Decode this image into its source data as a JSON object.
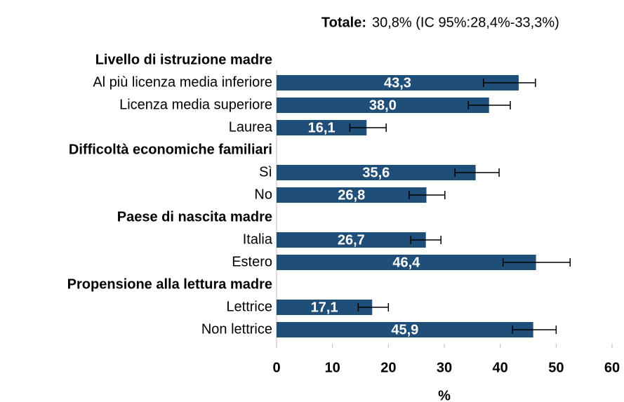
{
  "chart_data": {
    "type": "bar",
    "annotation": {
      "label": "Totale:",
      "text": "30,8% (IC 95%:28,4%-33,3%)"
    },
    "groups": [
      {
        "name": "Livello di istruzione madre",
        "categories": [
          "Al più licenza media inferiore",
          "Licenza media superiore",
          "Laurea"
        ],
        "values": [
          43.3,
          38.0,
          16.1
        ],
        "value_labels": [
          "43,3",
          "38,0",
          "16,1"
        ],
        "ci_low": [
          37.0,
          34.3,
          13.1
        ],
        "ci_high": [
          46.3,
          41.8,
          19.6
        ]
      },
      {
        "name": "Difficoltà economiche familiari",
        "categories": [
          "Sì",
          "No"
        ],
        "values": [
          35.6,
          26.8
        ],
        "value_labels": [
          "35,6",
          "26,8"
        ],
        "ci_low": [
          31.9,
          23.7
        ],
        "ci_high": [
          39.8,
          30.1
        ]
      },
      {
        "name": "Paese di nascita madre",
        "categories": [
          "Italia",
          "Estero"
        ],
        "values": [
          26.7,
          46.4
        ],
        "value_labels": [
          "26,7",
          "46,4"
        ],
        "ci_low": [
          24.0,
          40.5
        ],
        "ci_high": [
          29.4,
          52.5
        ]
      },
      {
        "name": "Propensione alla lettura madre",
        "categories": [
          "Lettrice",
          "Non lettrice"
        ],
        "values": [
          17.1,
          45.9
        ],
        "value_labels": [
          "17,1",
          "45,9"
        ],
        "ci_low": [
          14.6,
          42.2
        ],
        "ci_high": [
          20.0,
          50.0
        ]
      }
    ],
    "color": "#1f4e79",
    "xlabel": "%",
    "xlim": [
      0,
      60
    ],
    "xticks": [
      0,
      10,
      20,
      30,
      40,
      50,
      60
    ]
  }
}
